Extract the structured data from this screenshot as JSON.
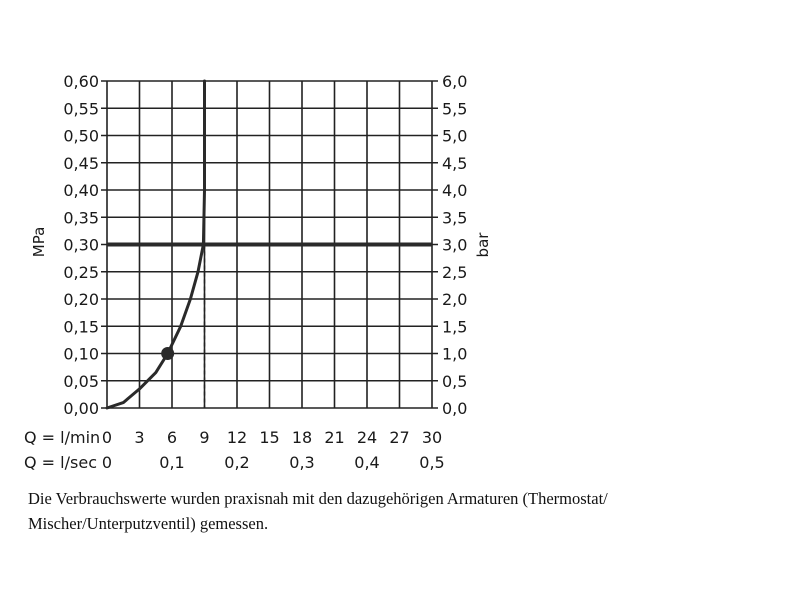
{
  "chart_data": {
    "type": "line",
    "y_left": {
      "label": "MPa",
      "ticks": [
        "0,00",
        "0,05",
        "0,10",
        "0,15",
        "0,20",
        "0,25",
        "0,30",
        "0,35",
        "0,40",
        "0,45",
        "0,50",
        "0,55",
        "0,60"
      ],
      "range": [
        0,
        0.6
      ]
    },
    "y_right": {
      "label": "bar",
      "ticks": [
        "0,0",
        "0,5",
        "1,0",
        "1,5",
        "2,0",
        "2,5",
        "3,0",
        "3,5",
        "4,0",
        "4,5",
        "5,0",
        "5,5",
        "6,0"
      ],
      "range": [
        0,
        6
      ]
    },
    "x_rows": [
      {
        "label": "Q = l/min",
        "values": [
          0,
          3,
          6,
          9,
          12,
          15,
          18,
          21,
          24,
          27,
          30
        ],
        "tick_labels": [
          "0",
          "3",
          "6",
          "9",
          "12",
          "15",
          "18",
          "21",
          "24",
          "27",
          "30"
        ]
      },
      {
        "label": "Q = l/sec",
        "values": [
          0,
          0.1,
          0.2,
          0.3,
          0.4,
          0.5
        ],
        "tick_labels": [
          "0",
          "0,1",
          "0,2",
          "0,3",
          "0,4",
          "0,5"
        ]
      }
    ],
    "x_range": [
      0,
      30
    ],
    "grid": true,
    "series": [
      {
        "points": [
          [
            0,
            0
          ],
          [
            1.5,
            0.01
          ],
          [
            3,
            0.035
          ],
          [
            4.5,
            0.065
          ],
          [
            5.6,
            0.1
          ],
          [
            6.8,
            0.15
          ],
          [
            7.7,
            0.2
          ],
          [
            8.4,
            0.25
          ],
          [
            8.9,
            0.3
          ],
          [
            9.0,
            0.4
          ],
          [
            9.0,
            0.5
          ],
          [
            9.0,
            0.6
          ]
        ]
      }
    ],
    "marker": {
      "x": 5.6,
      "y": 0.1
    },
    "reference_line": {
      "y": 0.3
    },
    "drop_line": {
      "x": 9,
      "from_y": 0,
      "to_y": 0.3,
      "style": "dashed"
    }
  },
  "caption": {
    "line1": "Die Verbrauchswerte wurden praxisnah mit den dazugehörigen Armaturen (Thermostat/",
    "line2": "Mischer/Unterputzventil) gemessen."
  }
}
